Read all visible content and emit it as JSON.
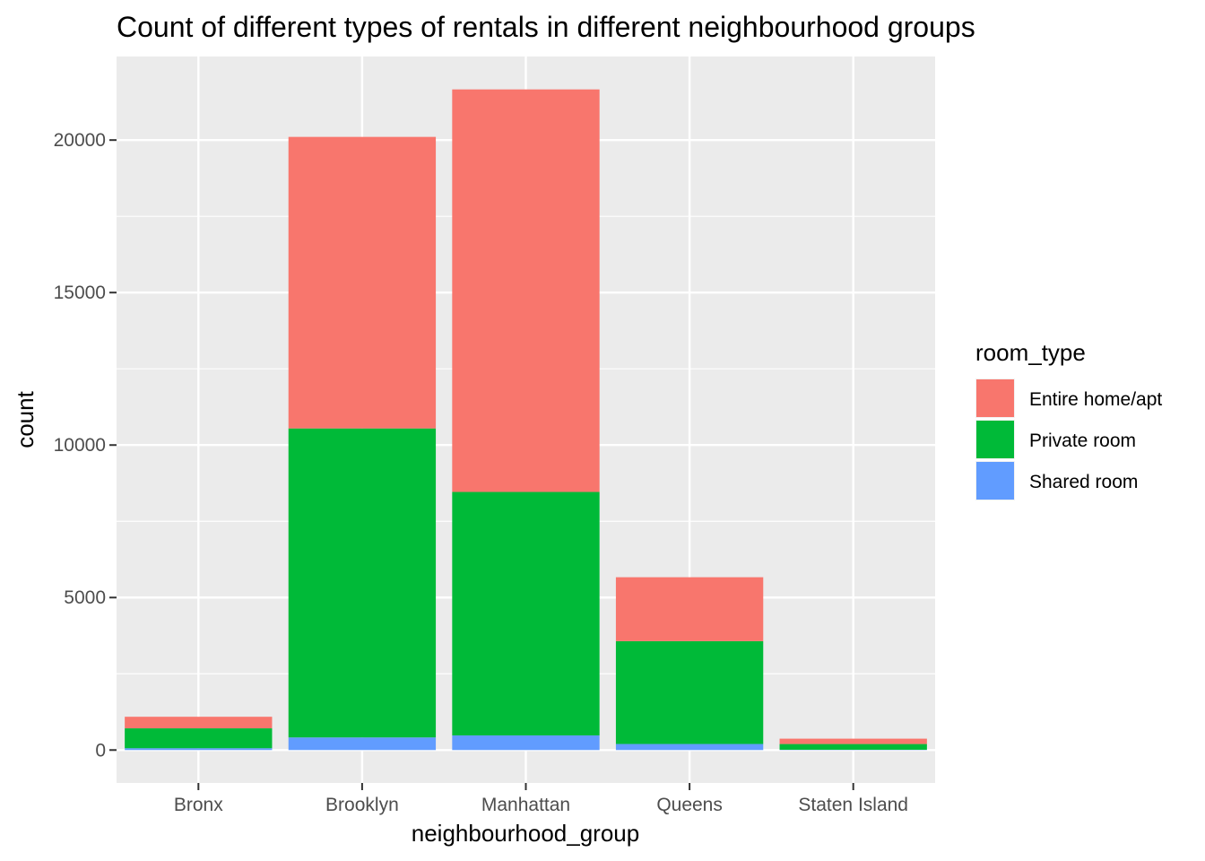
{
  "chart_data": {
    "type": "bar",
    "stacked": true,
    "title": "Count of different types of rentals in different neighbourhood groups",
    "xlabel": "neighbourhood_group",
    "ylabel": "count",
    "categories": [
      "Bronx",
      "Brooklyn",
      "Manhattan",
      "Queens",
      "Staten Island"
    ],
    "series": [
      {
        "name": "Shared room",
        "color": "#619CFF",
        "values": [
          60,
          413,
          480,
          198,
          9
        ]
      },
      {
        "name": "Private room",
        "color": "#00BA38",
        "values": [
          652,
          10132,
          7982,
          3372,
          188
        ]
      },
      {
        "name": "Entire home/apt",
        "color": "#F8766D",
        "values": [
          379,
          9559,
          13199,
          2096,
          176
        ]
      }
    ],
    "ylim": [
      -1080,
      22740
    ],
    "yticks": [
      0,
      5000,
      10000,
      15000,
      20000
    ],
    "grid": true,
    "legend": {
      "title": "room_type",
      "position": "right",
      "order": [
        "Entire home/apt",
        "Private room",
        "Shared room"
      ]
    }
  }
}
